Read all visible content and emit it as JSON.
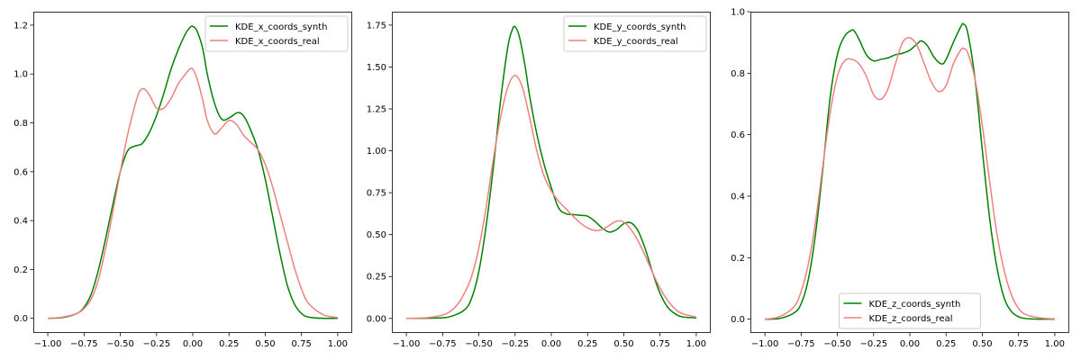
{
  "chart_data": [
    {
      "type": "line",
      "title": "",
      "xlabel": "",
      "ylabel": "",
      "xlim": [
        -1.1,
        1.1
      ],
      "ylim": [
        -0.06,
        1.255
      ],
      "xticks": [
        -1.0,
        -0.75,
        -0.5,
        -0.25,
        0.0,
        0.25,
        0.5,
        0.75,
        1.0
      ],
      "xtick_labels": [
        "−1.00",
        "−0.75",
        "−0.50",
        "−0.25",
        "0.00",
        "0.25",
        "0.50",
        "0.75",
        "1.00"
      ],
      "yticks": [
        0.0,
        0.2,
        0.4,
        0.6,
        0.8,
        1.0,
        1.2
      ],
      "ytick_labels": [
        "0.0",
        "0.2",
        "0.4",
        "0.6",
        "0.8",
        "1.0",
        "1.2"
      ],
      "legend_position": "upper right",
      "grid": false,
      "series": [
        {
          "name": "KDE_x_coords_synth",
          "color": "#008000",
          "x": [
            -1.0,
            -0.9,
            -0.8,
            -0.75,
            -0.7,
            -0.65,
            -0.6,
            -0.55,
            -0.5,
            -0.45,
            -0.4,
            -0.35,
            -0.3,
            -0.25,
            -0.2,
            -0.15,
            -0.1,
            -0.05,
            -0.02,
            0.0,
            0.03,
            0.07,
            0.1,
            0.15,
            0.2,
            0.25,
            0.3,
            0.33,
            0.36,
            0.4,
            0.45,
            0.5,
            0.55,
            0.6,
            0.65,
            0.7,
            0.75,
            0.8,
            0.9,
            1.0
          ],
          "y": [
            0.0,
            0.003,
            0.02,
            0.045,
            0.1,
            0.2,
            0.33,
            0.47,
            0.6,
            0.685,
            0.705,
            0.715,
            0.76,
            0.83,
            0.92,
            1.02,
            1.1,
            1.165,
            1.19,
            1.195,
            1.175,
            1.1,
            1.0,
            0.88,
            0.815,
            0.82,
            0.84,
            0.84,
            0.82,
            0.77,
            0.69,
            0.57,
            0.42,
            0.27,
            0.14,
            0.06,
            0.02,
            0.005,
            0.0,
            0.0
          ]
        },
        {
          "name": "KDE_x_coords_real",
          "color": "#f08080",
          "x": [
            -1.0,
            -0.9,
            -0.8,
            -0.75,
            -0.7,
            -0.65,
            -0.6,
            -0.55,
            -0.5,
            -0.45,
            -0.4,
            -0.37,
            -0.34,
            -0.3,
            -0.25,
            -0.2,
            -0.15,
            -0.1,
            -0.05,
            -0.02,
            0.0,
            0.03,
            0.07,
            0.1,
            0.15,
            0.2,
            0.25,
            0.3,
            0.35,
            0.4,
            0.45,
            0.5,
            0.55,
            0.6,
            0.65,
            0.7,
            0.75,
            0.8,
            0.9,
            1.0
          ],
          "y": [
            0.0,
            0.005,
            0.02,
            0.04,
            0.08,
            0.16,
            0.29,
            0.44,
            0.6,
            0.75,
            0.87,
            0.925,
            0.94,
            0.915,
            0.86,
            0.86,
            0.9,
            0.96,
            1.0,
            1.02,
            1.02,
            0.98,
            0.89,
            0.81,
            0.755,
            0.78,
            0.81,
            0.795,
            0.75,
            0.72,
            0.69,
            0.63,
            0.54,
            0.43,
            0.32,
            0.21,
            0.12,
            0.06,
            0.015,
            0.003
          ]
        }
      ]
    },
    {
      "type": "line",
      "title": "",
      "xlabel": "",
      "ylabel": "",
      "xlim": [
        -1.1,
        1.1
      ],
      "ylim": [
        -0.087,
        1.83
      ],
      "xticks": [
        -1.0,
        -0.75,
        -0.5,
        -0.25,
        0.0,
        0.25,
        0.5,
        0.75,
        1.0
      ],
      "xtick_labels": [
        "−1.00",
        "−0.75",
        "−0.50",
        "−0.25",
        "0.00",
        "0.25",
        "0.50",
        "0.75",
        "1.00"
      ],
      "yticks": [
        0.0,
        0.25,
        0.5,
        0.75,
        1.0,
        1.25,
        1.5,
        1.75
      ],
      "ytick_labels": [
        "0.00",
        "0.25",
        "0.50",
        "0.75",
        "1.00",
        "1.25",
        "1.50",
        "1.75"
      ],
      "legend_position": "upper right",
      "grid": false,
      "series": [
        {
          "name": "KDE_y_coords_synth",
          "color": "#008000",
          "x": [
            -1.0,
            -0.8,
            -0.7,
            -0.6,
            -0.55,
            -0.5,
            -0.45,
            -0.4,
            -0.35,
            -0.3,
            -0.27,
            -0.25,
            -0.22,
            -0.18,
            -0.15,
            -0.1,
            -0.05,
            0.0,
            0.05,
            0.1,
            0.15,
            0.2,
            0.25,
            0.3,
            0.35,
            0.4,
            0.45,
            0.5,
            0.55,
            0.6,
            0.65,
            0.7,
            0.75,
            0.8,
            0.85,
            0.9,
            1.0
          ],
          "y": [
            0.0,
            0.002,
            0.01,
            0.05,
            0.12,
            0.28,
            0.55,
            0.9,
            1.3,
            1.62,
            1.72,
            1.74,
            1.68,
            1.5,
            1.33,
            1.1,
            0.92,
            0.78,
            0.66,
            0.625,
            0.62,
            0.615,
            0.61,
            0.58,
            0.54,
            0.515,
            0.53,
            0.565,
            0.57,
            0.52,
            0.41,
            0.27,
            0.15,
            0.07,
            0.03,
            0.01,
            0.003
          ]
        },
        {
          "name": "KDE_y_coords_real",
          "color": "#f08080",
          "x": [
            -1.0,
            -0.85,
            -0.75,
            -0.7,
            -0.65,
            -0.6,
            -0.55,
            -0.5,
            -0.45,
            -0.4,
            -0.35,
            -0.3,
            -0.25,
            -0.2,
            -0.15,
            -0.1,
            -0.05,
            0.0,
            0.05,
            0.1,
            0.15,
            0.2,
            0.25,
            0.3,
            0.35,
            0.4,
            0.45,
            0.5,
            0.55,
            0.6,
            0.65,
            0.7,
            0.75,
            0.8,
            0.85,
            0.9,
            1.0
          ],
          "y": [
            0.0,
            0.005,
            0.02,
            0.04,
            0.08,
            0.15,
            0.25,
            0.42,
            0.66,
            0.95,
            1.2,
            1.38,
            1.45,
            1.38,
            1.2,
            1.0,
            0.85,
            0.76,
            0.7,
            0.655,
            0.61,
            0.57,
            0.54,
            0.525,
            0.53,
            0.555,
            0.58,
            0.575,
            0.53,
            0.46,
            0.37,
            0.27,
            0.18,
            0.11,
            0.06,
            0.03,
            0.008
          ]
        }
      ]
    },
    {
      "type": "line",
      "title": "",
      "xlabel": "",
      "ylabel": "",
      "xlim": [
        -1.1,
        1.1
      ],
      "ylim": [
        -0.045,
        1.0
      ],
      "xticks": [
        -1.0,
        -0.75,
        -0.5,
        -0.25,
        0.0,
        0.25,
        0.5,
        0.75,
        1.0
      ],
      "xtick_labels": [
        "−1.00",
        "−0.75",
        "−0.50",
        "−0.25",
        "0.00",
        "0.25",
        "0.50",
        "0.75",
        "1.00"
      ],
      "yticks": [
        0.0,
        0.2,
        0.4,
        0.6,
        0.8,
        1.0
      ],
      "ytick_labels": [
        "0.0",
        "0.2",
        "0.4",
        "0.6",
        "0.8",
        "1.0"
      ],
      "legend_position": "lower center",
      "grid": false,
      "series": [
        {
          "name": "KDE_z_coords_synth",
          "color": "#008000",
          "x": [
            -1.0,
            -0.9,
            -0.8,
            -0.75,
            -0.7,
            -0.65,
            -0.6,
            -0.55,
            -0.5,
            -0.45,
            -0.4,
            -0.38,
            -0.35,
            -0.3,
            -0.25,
            -0.2,
            -0.15,
            -0.1,
            -0.05,
            0.0,
            0.05,
            0.08,
            0.12,
            0.17,
            0.22,
            0.25,
            0.3,
            0.35,
            0.37,
            0.4,
            0.45,
            0.5,
            0.55,
            0.6,
            0.65,
            0.7,
            0.75,
            0.8,
            0.9,
            1.0
          ],
          "y": [
            0.0,
            0.002,
            0.02,
            0.05,
            0.13,
            0.28,
            0.49,
            0.72,
            0.86,
            0.92,
            0.94,
            0.935,
            0.91,
            0.86,
            0.84,
            0.845,
            0.85,
            0.86,
            0.865,
            0.875,
            0.895,
            0.905,
            0.89,
            0.85,
            0.83,
            0.845,
            0.9,
            0.95,
            0.96,
            0.93,
            0.78,
            0.55,
            0.33,
            0.17,
            0.07,
            0.025,
            0.008,
            0.002,
            0.0,
            0.0
          ]
        },
        {
          "name": "KDE_z_coords_real",
          "color": "#f08080",
          "x": [
            -1.0,
            -0.9,
            -0.8,
            -0.75,
            -0.7,
            -0.65,
            -0.6,
            -0.55,
            -0.5,
            -0.45,
            -0.4,
            -0.35,
            -0.3,
            -0.25,
            -0.2,
            -0.15,
            -0.1,
            -0.05,
            0.0,
            0.05,
            0.1,
            0.15,
            0.2,
            0.25,
            0.3,
            0.35,
            0.37,
            0.4,
            0.45,
            0.5,
            0.55,
            0.6,
            0.65,
            0.7,
            0.75,
            0.8,
            0.9,
            1.0
          ],
          "y": [
            0.0,
            0.008,
            0.04,
            0.09,
            0.18,
            0.32,
            0.5,
            0.67,
            0.79,
            0.84,
            0.845,
            0.83,
            0.79,
            0.73,
            0.715,
            0.75,
            0.83,
            0.9,
            0.915,
            0.89,
            0.83,
            0.77,
            0.74,
            0.76,
            0.83,
            0.875,
            0.88,
            0.865,
            0.78,
            0.63,
            0.45,
            0.28,
            0.16,
            0.08,
            0.035,
            0.015,
            0.004,
            0.001
          ]
        }
      ]
    }
  ]
}
